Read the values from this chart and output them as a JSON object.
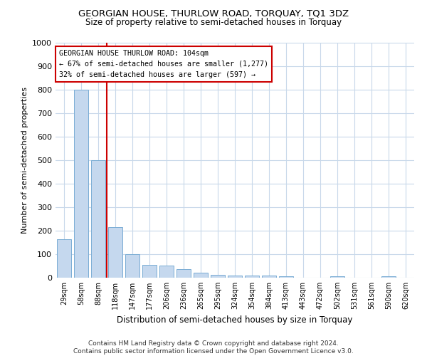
{
  "title": "GEORGIAN HOUSE, THURLOW ROAD, TORQUAY, TQ1 3DZ",
  "subtitle": "Size of property relative to semi-detached houses in Torquay",
  "xlabel": "Distribution of semi-detached houses by size in Torquay",
  "ylabel": "Number of semi-detached properties",
  "categories": [
    "29sqm",
    "58sqm",
    "88sqm",
    "118sqm",
    "147sqm",
    "177sqm",
    "206sqm",
    "236sqm",
    "265sqm",
    "295sqm",
    "324sqm",
    "354sqm",
    "384sqm",
    "413sqm",
    "443sqm",
    "472sqm",
    "502sqm",
    "531sqm",
    "561sqm",
    "590sqm",
    "620sqm"
  ],
  "values": [
    165,
    800,
    500,
    215,
    100,
    55,
    52,
    35,
    20,
    12,
    10,
    10,
    10,
    7,
    0,
    0,
    7,
    0,
    0,
    7,
    0
  ],
  "bar_color": "#c5d8ee",
  "bar_edge_color": "#7aadd4",
  "vline_color": "#cc0000",
  "annotation_text": "GEORGIAN HOUSE THURLOW ROAD: 104sqm\n← 67% of semi-detached houses are smaller (1,277)\n32% of semi-detached houses are larger (597) →",
  "annotation_box_color": "#ffffff",
  "annotation_box_edge": "#cc0000",
  "ylim": [
    0,
    1000
  ],
  "yticks": [
    0,
    100,
    200,
    300,
    400,
    500,
    600,
    700,
    800,
    900,
    1000
  ],
  "footer": "Contains HM Land Registry data © Crown copyright and database right 2024.\nContains public sector information licensed under the Open Government Licence v3.0.",
  "bg_color": "#ffffff",
  "grid_color": "#c8d8ea"
}
